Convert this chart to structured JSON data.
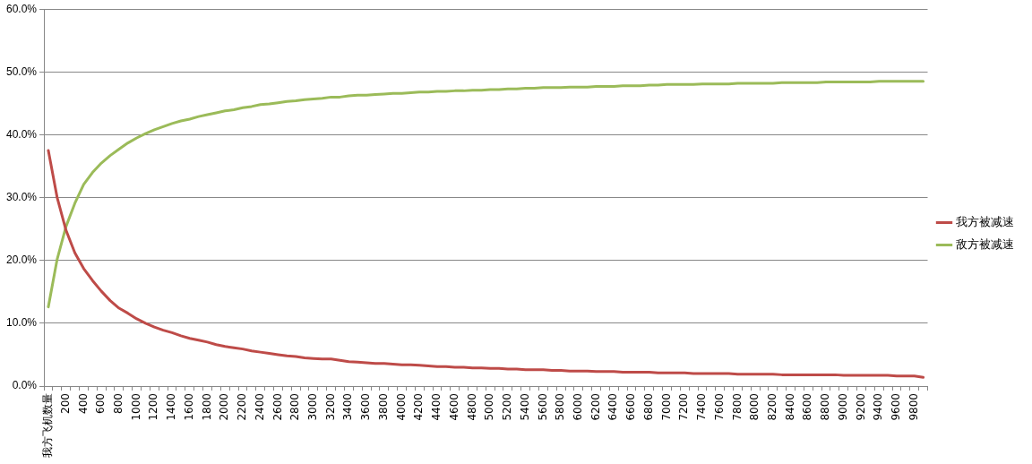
{
  "chart_data": {
    "type": "line",
    "categories": [
      "我方飞机数量",
      null,
      "200",
      null,
      "400",
      null,
      "600",
      null,
      "800",
      null,
      "1000",
      null,
      "1200",
      null,
      "1400",
      null,
      "1600",
      null,
      "1800",
      null,
      "2000",
      null,
      "2200",
      null,
      "2400",
      null,
      "2600",
      null,
      "2800",
      null,
      "3000",
      null,
      "3200",
      null,
      "3400",
      null,
      "3600",
      null,
      "3800",
      null,
      "4000",
      null,
      "4200",
      null,
      "4400",
      null,
      "4600",
      null,
      "4800",
      null,
      "5000",
      null,
      "5200",
      null,
      "5400",
      null,
      "5600",
      null,
      "5800",
      null,
      "6000",
      null,
      "6200",
      null,
      "6400",
      null,
      "6600",
      null,
      "6800",
      null,
      "7000",
      null,
      "7200",
      null,
      "7400",
      null,
      "7600",
      null,
      "7800",
      null,
      "8000",
      null,
      "8200",
      null,
      "8400",
      null,
      "8600",
      null,
      "8800",
      null,
      "9000",
      null,
      "9200",
      null,
      "9400",
      null,
      "9600",
      null,
      "9800",
      null
    ],
    "series": [
      {
        "name": "我方被减速",
        "color": "#be4b48",
        "values": [
          37.5,
          30.0,
          24.8,
          21.2,
          18.7,
          16.8,
          15.1,
          13.6,
          12.4,
          11.6,
          10.7,
          10.0,
          9.4,
          8.9,
          8.5,
          8.0,
          7.6,
          7.3,
          7.0,
          6.6,
          6.3,
          6.1,
          5.9,
          5.6,
          5.4,
          5.2,
          5.0,
          4.8,
          4.7,
          4.5,
          4.4,
          4.3,
          4.3,
          4.1,
          3.9,
          3.8,
          3.7,
          3.6,
          3.6,
          3.5,
          3.4,
          3.4,
          3.3,
          3.2,
          3.1,
          3.1,
          3.0,
          3.0,
          2.9,
          2.9,
          2.8,
          2.8,
          2.7,
          2.7,
          2.6,
          2.6,
          2.6,
          2.5,
          2.5,
          2.4,
          2.4,
          2.4,
          2.3,
          2.3,
          2.3,
          2.2,
          2.2,
          2.2,
          2.2,
          2.1,
          2.1,
          2.1,
          2.1,
          2.0,
          2.0,
          2.0,
          2.0,
          2.0,
          1.9,
          1.9,
          1.9,
          1.9,
          1.9,
          1.8,
          1.8,
          1.8,
          1.8,
          1.8,
          1.8,
          1.8,
          1.7,
          1.7,
          1.7,
          1.7,
          1.7,
          1.7,
          1.6,
          1.6,
          1.6,
          1.4
        ]
      },
      {
        "name": "敌方被减速",
        "color": "#9bbb59",
        "values": [
          12.6,
          20.2,
          25.4,
          29.1,
          32.1,
          34.0,
          35.5,
          36.7,
          37.7,
          38.7,
          39.5,
          40.2,
          40.8,
          41.3,
          41.8,
          42.2,
          42.5,
          42.9,
          43.2,
          43.5,
          43.8,
          44.0,
          44.3,
          44.5,
          44.8,
          44.9,
          45.1,
          45.3,
          45.4,
          45.6,
          45.7,
          45.8,
          46.0,
          46.0,
          46.2,
          46.3,
          46.3,
          46.4,
          46.5,
          46.6,
          46.6,
          46.7,
          46.8,
          46.8,
          46.9,
          46.9,
          47.0,
          47.0,
          47.1,
          47.1,
          47.2,
          47.2,
          47.3,
          47.3,
          47.4,
          47.4,
          47.5,
          47.5,
          47.5,
          47.6,
          47.6,
          47.6,
          47.7,
          47.7,
          47.7,
          47.8,
          47.8,
          47.8,
          47.9,
          47.9,
          48.0,
          48.0,
          48.0,
          48.0,
          48.1,
          48.1,
          48.1,
          48.1,
          48.2,
          48.2,
          48.2,
          48.2,
          48.2,
          48.3,
          48.3,
          48.3,
          48.3,
          48.3,
          48.4,
          48.4,
          48.4,
          48.4,
          48.4,
          48.4,
          48.5,
          48.5,
          48.5,
          48.5,
          48.5,
          48.5
        ]
      }
    ],
    "ylim": [
      0,
      60
    ],
    "yticks": [
      {
        "value": 0,
        "label": "0.0%"
      },
      {
        "value": 10,
        "label": "10.0%"
      },
      {
        "value": 20,
        "label": "20.0%"
      },
      {
        "value": 30,
        "label": "30.0%"
      },
      {
        "value": 40,
        "label": "40.0%"
      },
      {
        "value": 50,
        "label": "50.0%"
      },
      {
        "value": 60,
        "label": "60.0%"
      }
    ],
    "grid": "y",
    "legend": "right",
    "marker": "none",
    "line_style": "solid"
  }
}
